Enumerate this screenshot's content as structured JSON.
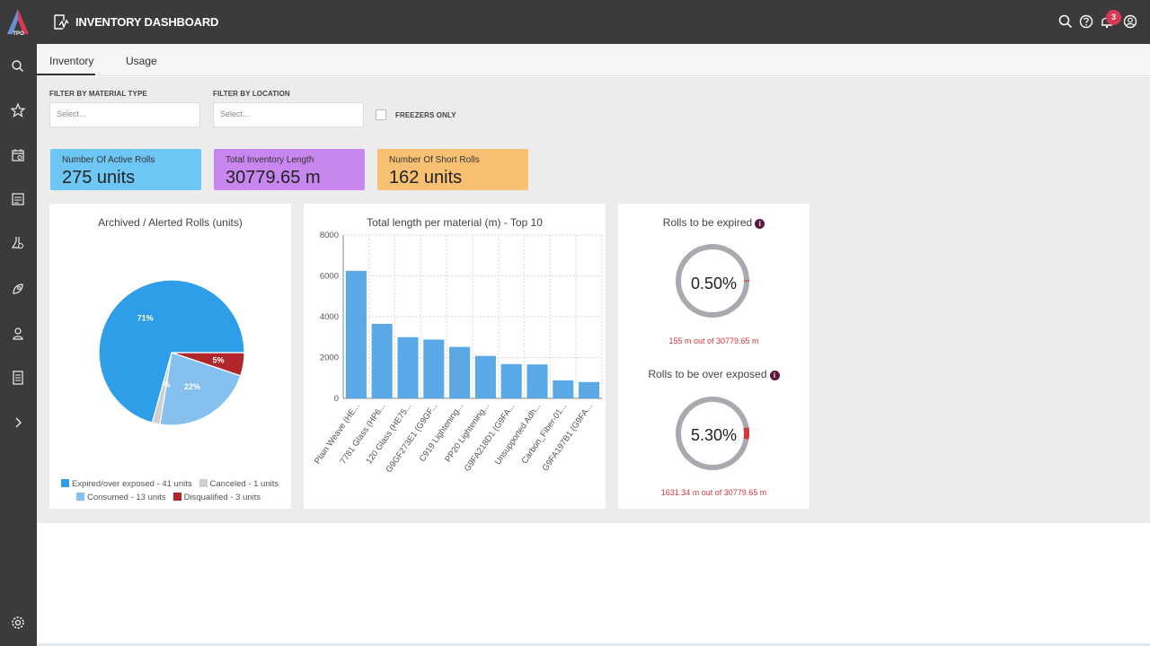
{
  "app": {
    "logo_text": "TPO",
    "title": "INVENTORY DASHBOARD",
    "notifications_count": "3"
  },
  "sidebar": {
    "icons": [
      "search-icon",
      "star-icon",
      "calendar-icon",
      "report-icon",
      "lab-search-icon",
      "rocket-icon",
      "user-icon",
      "document-icon",
      "chevron-right-icon",
      "gear-icon"
    ]
  },
  "header_icons": [
    "search-icon",
    "help-icon",
    "bell-icon",
    "account-icon"
  ],
  "tabs": [
    {
      "label": "Inventory",
      "active": true
    },
    {
      "label": "Usage",
      "active": false
    }
  ],
  "filters": {
    "material_type": {
      "label": "FILTER BY MATERIAL TYPE",
      "placeholder": "Select..."
    },
    "location": {
      "label": "FILTER BY LOCATION",
      "placeholder": "Select..."
    },
    "freezers_only": {
      "label": "FREEZERS ONLY",
      "checked": false
    }
  },
  "kpis": [
    {
      "label": "Number Of Active Rolls",
      "value": "275 units",
      "color": "#6ec6f5"
    },
    {
      "label": "Total Inventory Length",
      "value": "30779.65 m",
      "color": "#c887ef"
    },
    {
      "label": "Number Of Short Rolls",
      "value": "162 units",
      "color": "#f7c072"
    }
  ],
  "pie_card": {
    "title": "Archived / Alerted Rolls (units)",
    "chart_data": {
      "type": "pie",
      "slices": [
        {
          "label": "Expired/over exposed - 41 units",
          "value": 41,
          "percent_label": "71%",
          "color": "#2e9ee8"
        },
        {
          "label": "Canceled - 1 units",
          "value": 1,
          "percent_label": "2%",
          "color": "#cfcfcf"
        },
        {
          "label": "Consumed - 13 units",
          "value": 13,
          "percent_label": "22%",
          "color": "#86c0ee"
        },
        {
          "label": "Disqualified - 3 units",
          "value": 3,
          "percent_label": "5%",
          "color": "#b0262a"
        }
      ]
    }
  },
  "bar_card": {
    "title": "Total length per material (m) - Top 10",
    "chart_data": {
      "type": "bar",
      "categories": [
        "Plain Weave (HE...",
        "7781 Glass (HP6...",
        "120 Glass (HE75...",
        "G9GF273E1 (G9GF...",
        "C919 Lightening...",
        "PP20 Lightening...",
        "G9FA218D1 (G9FA...",
        "Unsupported Adh...",
        "Carbon_Fiber-01...",
        "G9FA197B1 (G9FA..."
      ],
      "values": [
        6250,
        3650,
        3000,
        2880,
        2520,
        2080,
        1680,
        1660,
        880,
        800
      ],
      "ylim": [
        0,
        8000
      ],
      "yticks": [
        "0",
        "2000",
        "4000",
        "6000",
        "8000"
      ],
      "color": "#5aa9e6",
      "grid": true
    }
  },
  "ring_card": {
    "expired": {
      "title": "Rolls to be expired",
      "value": "0.50%",
      "caption": "155 m out of 30779.65 m",
      "fraction": 0.005
    },
    "overexposed": {
      "title": "Rolls to be over exposed",
      "value": "5.30%",
      "caption": "1631.34 m out of 30779.65 m",
      "fraction": 0.053
    },
    "info_glyph": "i",
    "ring_color": "#a9a9b0",
    "alert_color": "#d2373c"
  }
}
